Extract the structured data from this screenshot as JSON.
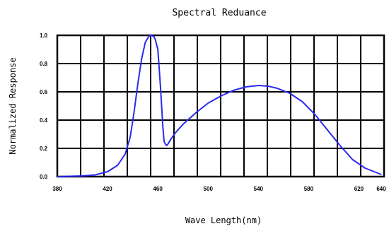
{
  "chart_data": {
    "type": "line",
    "title": "Spectral Reduance",
    "xlabel": "Wave Length(nm)",
    "ylabel": "Normalized Response",
    "xlim": [
      380,
      640
    ],
    "ylim": [
      0,
      1.0
    ],
    "x_tick_labels": [
      "380",
      "420",
      "460",
      "500",
      "540",
      "580",
      "620",
      "640"
    ],
    "y_tick_labels": [
      "0.0",
      "0.2",
      "0.4",
      "0.6",
      "0.8",
      "1.0"
    ],
    "grid": true,
    "series": [
      {
        "color": "#2a2af0",
        "x": [
          380,
          400,
          410,
          420,
          428,
          434,
          438,
          441,
          444,
          447,
          450,
          453,
          455,
          457,
          458,
          460,
          462,
          464,
          465,
          466,
          467,
          468,
          470,
          474,
          480,
          490,
          500,
          510,
          520,
          530,
          540,
          548,
          555,
          565,
          575,
          585,
          595,
          605,
          615,
          625,
          635,
          638
        ],
        "y": [
          0.0,
          0.005,
          0.012,
          0.035,
          0.08,
          0.16,
          0.28,
          0.45,
          0.65,
          0.83,
          0.95,
          0.995,
          1.0,
          0.99,
          0.97,
          0.9,
          0.65,
          0.35,
          0.25,
          0.23,
          0.22,
          0.23,
          0.26,
          0.31,
          0.37,
          0.45,
          0.52,
          0.57,
          0.61,
          0.635,
          0.645,
          0.64,
          0.625,
          0.59,
          0.53,
          0.44,
          0.33,
          0.22,
          0.12,
          0.06,
          0.025,
          0.015
        ]
      }
    ]
  }
}
